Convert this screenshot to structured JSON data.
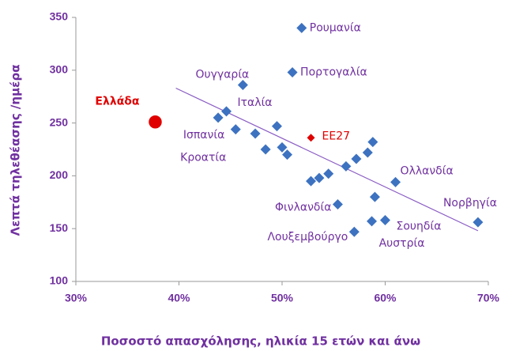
{
  "chart_data": {
    "type": "scatter",
    "xlabel": "Ποσοστό απασχόλησης, ηλικία 15 ετών και άνω",
    "ylabel": "Λεπτά τηλεθέασης /ημέρα",
    "xlim": [
      30,
      70
    ],
    "xticks": [
      {
        "value": 30,
        "label": "30%"
      },
      {
        "value": 40,
        "label": "40%"
      },
      {
        "value": 50,
        "label": "50%"
      },
      {
        "value": 60,
        "label": "60%"
      },
      {
        "value": 70,
        "label": "70%"
      }
    ],
    "ylim": [
      100,
      350
    ],
    "yticks": [
      100,
      150,
      200,
      250,
      300,
      350
    ],
    "series": [
      {
        "color": "#3d72c0",
        "marker": "diamond",
        "label_color": "#7030a0",
        "x": [
          51.9,
          51.0,
          46.2,
          44.6,
          43.8,
          45.5,
          47.4,
          48.4,
          49.5,
          50.0,
          50.5,
          52.8,
          53.6,
          54.5,
          56.2,
          57.2,
          58.3,
          58.8,
          59.0,
          61.0,
          55.4,
          58.7,
          60.0,
          57.0,
          69.0
        ],
        "values": [
          340,
          298,
          286,
          261,
          255,
          244,
          240,
          225,
          247,
          227,
          220,
          195,
          198,
          202,
          209,
          216,
          222,
          232,
          180,
          194,
          173,
          157,
          158,
          147,
          156
        ],
        "labels": [
          "Ρουμανία",
          "Πορτογαλία",
          "Ουγγαρία",
          "Ιταλία",
          "Ισπανία",
          "Κροατία",
          null,
          null,
          null,
          null,
          null,
          null,
          null,
          null,
          null,
          null,
          null,
          null,
          null,
          "Ολλανδία",
          "Φινλανδία",
          "Αυστρία",
          "Σουηδία",
          "Λουξεμβούργο",
          "Νορβηγία"
        ]
      },
      {
        "color": "#e00000",
        "marker": "circle",
        "label_color": "#e00000",
        "x": [
          37.7
        ],
        "values": [
          251
        ],
        "labels": [
          "Ελλάδα"
        ]
      },
      {
        "color": "#e00000",
        "marker": "diamond",
        "label_color": "#e00000",
        "x": [
          52.8
        ],
        "values": [
          236
        ],
        "labels": [
          "ΕΕ27"
        ]
      }
    ],
    "trendline": {
      "color": "#8a5cc4",
      "x": [
        39.7,
        69.0
      ],
      "values": [
        283,
        148
      ]
    }
  }
}
